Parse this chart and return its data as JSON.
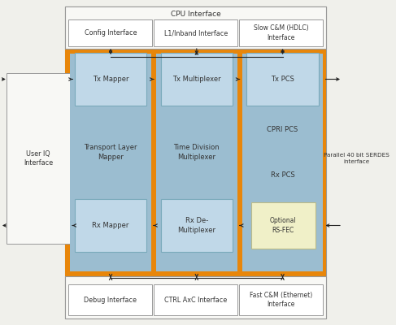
{
  "bg_color": "#f0f0eb",
  "orange_color": "#E8860A",
  "lb_outer": "#9BBDD0",
  "lb_inner": "#C0D8E8",
  "white_box": "#FFFFFF",
  "light_white_box": "#F8F8F5",
  "cream_box": "#F0F0C8",
  "arrow_color": "#222222",
  "text_color": "#333333",
  "border_color": "#999999",
  "cpu_top_label": "CPU Interface",
  "top_boxes": [
    "Config Interface",
    "L1/Inband Interface",
    "Slow C&M (HDLC)\nInterface"
  ],
  "bottom_boxes": [
    "Debug Interface",
    "CTRL AxC Interface",
    "Fast C&M (Ethernet)\nInterface"
  ],
  "col1_labels": [
    "Tx Mapper",
    "Transport Layer\nMapper",
    "Rx Mapper"
  ],
  "col2_labels": [
    "Tx Multiplexer",
    "Time Division\nMultiplexer",
    "Rx De-\nMultiplexer"
  ],
  "col3_labels": [
    "Tx PCS",
    "CPRI PCS",
    "Rx PCS",
    "Optional\nRS-FEC"
  ],
  "left_label": "User IQ\nInterface",
  "right_label": "Parallel 40 bit SERDES\ninterface"
}
